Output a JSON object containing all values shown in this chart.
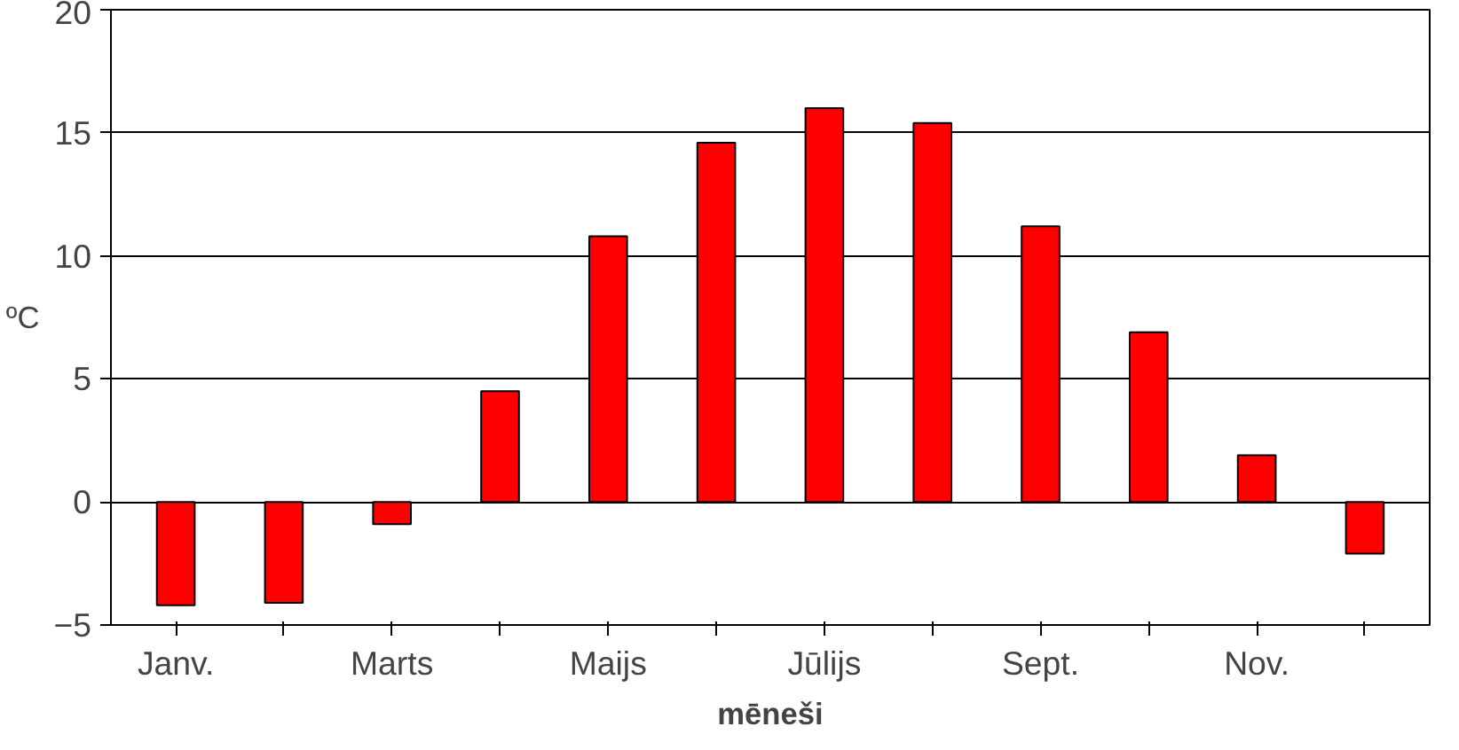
{
  "chart_data": {
    "type": "bar",
    "xlabel": "mēneši",
    "ylabel": "ºC",
    "categories": [
      "Janv.",
      null,
      "Marts",
      null,
      "Maijs",
      null,
      "Jūlijs",
      null,
      "Sept.",
      null,
      "Nov.",
      null
    ],
    "values": [
      -4.2,
      -4.1,
      -0.9,
      4.5,
      10.8,
      14.6,
      16.0,
      15.4,
      11.2,
      6.9,
      1.9,
      -2.1
    ],
    "color": "#ff0000",
    "ylim": [
      -5,
      20
    ],
    "yticks": [
      -5,
      0,
      5,
      10,
      15,
      20
    ],
    "grid": "y"
  }
}
